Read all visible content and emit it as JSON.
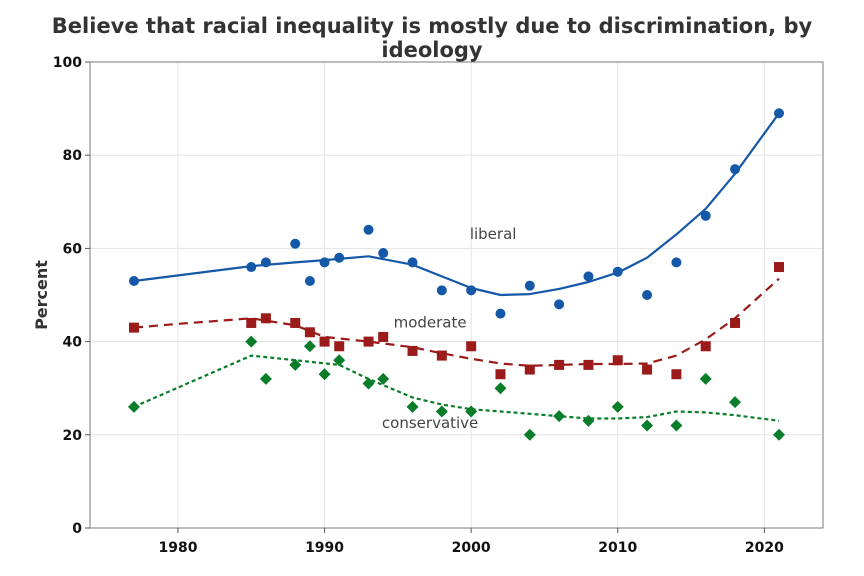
{
  "chart_data": {
    "type": "scatter",
    "title": "Believe that racial inequality is mostly due to discrimination, by ideology",
    "xlabel": "",
    "ylabel": "Percent",
    "xlim": [
      1974,
      2024
    ],
    "ylim": [
      0,
      100
    ],
    "xticks": [
      1980,
      1990,
      2000,
      2010,
      2020
    ],
    "yticks": [
      0,
      20,
      40,
      60,
      80,
      100
    ],
    "grid": true,
    "series": [
      {
        "name": "liberal",
        "label": "liberal",
        "color": "#1558a7",
        "marker": "circle",
        "line_style": "solid",
        "points": [
          [
            1977,
            53
          ],
          [
            1985,
            56
          ],
          [
            1986,
            57
          ],
          [
            1988,
            61
          ],
          [
            1989,
            53
          ],
          [
            1990,
            57
          ],
          [
            1991,
            58
          ],
          [
            1993,
            64
          ],
          [
            1994,
            59
          ],
          [
            1996,
            57
          ],
          [
            1998,
            51
          ],
          [
            2000,
            51
          ],
          [
            2002,
            46
          ],
          [
            2004,
            52
          ],
          [
            2006,
            48
          ],
          [
            2008,
            54
          ],
          [
            2010,
            55
          ],
          [
            2012,
            50
          ],
          [
            2014,
            57
          ],
          [
            2016,
            67
          ],
          [
            2018,
            77
          ],
          [
            2021,
            89
          ]
        ],
        "trend": [
          [
            1977,
            53
          ],
          [
            1985,
            56.2
          ],
          [
            1988,
            57
          ],
          [
            1990,
            57.5
          ],
          [
            1993,
            58.3
          ],
          [
            1996,
            56.5
          ],
          [
            1998,
            54
          ],
          [
            2000,
            51.5
          ],
          [
            2002,
            50
          ],
          [
            2004,
            50.2
          ],
          [
            2006,
            51.3
          ],
          [
            2008,
            52.8
          ],
          [
            2010,
            54.8
          ],
          [
            2012,
            58
          ],
          [
            2014,
            63
          ],
          [
            2016,
            68.5
          ],
          [
            2018,
            76
          ],
          [
            2021,
            89
          ]
        ]
      },
      {
        "name": "moderate",
        "label": "moderate",
        "color": "#9b1a1a",
        "marker": "square",
        "line_style": "dashed",
        "points": [
          [
            1977,
            43
          ],
          [
            1985,
            44
          ],
          [
            1986,
            45
          ],
          [
            1988,
            44
          ],
          [
            1989,
            42
          ],
          [
            1990,
            40
          ],
          [
            1991,
            39
          ],
          [
            1993,
            40
          ],
          [
            1994,
            41
          ],
          [
            1996,
            38
          ],
          [
            1998,
            37
          ],
          [
            2000,
            39
          ],
          [
            2002,
            33
          ],
          [
            2004,
            34
          ],
          [
            2006,
            35
          ],
          [
            2008,
            35
          ],
          [
            2010,
            36
          ],
          [
            2012,
            34
          ],
          [
            2014,
            33
          ],
          [
            2016,
            39
          ],
          [
            2018,
            44
          ],
          [
            2021,
            56
          ]
        ],
        "trend": [
          [
            1977,
            43
          ],
          [
            1980,
            43.8
          ],
          [
            1985,
            45
          ],
          [
            1988,
            43.5
          ],
          [
            1990,
            41
          ],
          [
            1993,
            40
          ],
          [
            1996,
            38.8
          ],
          [
            1998,
            37.5
          ],
          [
            2000,
            36.3
          ],
          [
            2002,
            35.3
          ],
          [
            2004,
            34.8
          ],
          [
            2006,
            35
          ],
          [
            2008,
            35.2
          ],
          [
            2010,
            35.2
          ],
          [
            2012,
            35.3
          ],
          [
            2014,
            37
          ],
          [
            2016,
            40.5
          ],
          [
            2018,
            45
          ],
          [
            2021,
            53.5
          ]
        ]
      },
      {
        "name": "conservative",
        "label": "conservative",
        "color": "#0a7d2a",
        "marker": "diamond",
        "line_style": "dotted",
        "points": [
          [
            1977,
            26
          ],
          [
            1985,
            40
          ],
          [
            1986,
            32
          ],
          [
            1988,
            35
          ],
          [
            1989,
            39
          ],
          [
            1990,
            33
          ],
          [
            1991,
            36
          ],
          [
            1993,
            31
          ],
          [
            1994,
            32
          ],
          [
            1996,
            26
          ],
          [
            1998,
            25
          ],
          [
            2000,
            25
          ],
          [
            2002,
            30
          ],
          [
            2004,
            20
          ],
          [
            2006,
            24
          ],
          [
            2008,
            23
          ],
          [
            2010,
            26
          ],
          [
            2012,
            22
          ],
          [
            2014,
            22
          ],
          [
            2016,
            32
          ],
          [
            2018,
            27
          ],
          [
            2021,
            20
          ]
        ],
        "trend": [
          [
            1977,
            26
          ],
          [
            1985,
            37
          ],
          [
            1988,
            36
          ],
          [
            1991,
            35
          ],
          [
            1993,
            32
          ],
          [
            1996,
            28
          ],
          [
            1998,
            26.5
          ],
          [
            2000,
            25.5
          ],
          [
            2002,
            25
          ],
          [
            2004,
            24.5
          ],
          [
            2006,
            24
          ],
          [
            2008,
            23.5
          ],
          [
            2010,
            23.5
          ],
          [
            2012,
            23.8
          ],
          [
            2014,
            25
          ],
          [
            2016,
            24.8
          ],
          [
            2018,
            24.2
          ],
          [
            2021,
            23
          ]
        ]
      }
    ],
    "annotations": [
      {
        "text": "liberal",
        "series": "liberal",
        "x": 2001.5,
        "y": 62
      },
      {
        "text": "moderate",
        "series": "moderate",
        "x": 1997.2,
        "y": 43
      },
      {
        "text": "conservative",
        "series": "conservative",
        "x": 1997.2,
        "y": 21.5
      }
    ]
  }
}
